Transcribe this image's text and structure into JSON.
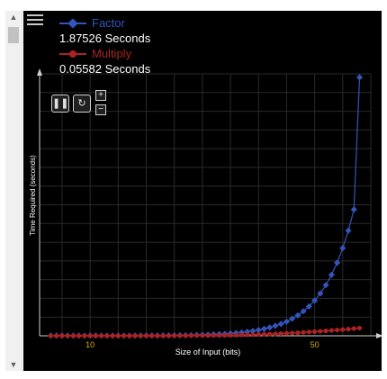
{
  "legend": {
    "factor": {
      "name": "Factor",
      "time": "1.87526 Seconds",
      "color": "#3355bb"
    },
    "multiply": {
      "name": "Multiply",
      "time": "0.05582 Seconds",
      "color": "#aa2222"
    }
  },
  "controls": {
    "pause_icon": "pause-icon",
    "reset_icon": "refresh-icon",
    "zoom_in": "+",
    "zoom_out": "−"
  },
  "chart_data": {
    "type": "line",
    "xlabel": "Size of Input (bits)",
    "ylabel": "Time Required (seconds)",
    "xlim": [
      1,
      60
    ],
    "ylim": [
      0,
      1.9
    ],
    "x_ticks": [
      10,
      50
    ],
    "x_tick_labels": [
      "10",
      "50"
    ],
    "grid": true,
    "x": [
      3,
      4,
      5,
      6,
      7,
      8,
      9,
      10,
      11,
      12,
      13,
      14,
      15,
      16,
      17,
      18,
      19,
      20,
      21,
      22,
      23,
      24,
      25,
      26,
      27,
      28,
      29,
      30,
      31,
      32,
      33,
      34,
      35,
      36,
      37,
      38,
      39,
      40,
      41,
      42,
      43,
      44,
      45,
      46,
      47,
      48,
      49,
      50,
      51,
      52,
      53,
      54,
      55,
      56,
      57,
      58
    ],
    "series": [
      {
        "name": "Factor",
        "color": "#3355bb",
        "values": [
          0.001,
          0.001,
          0.001,
          0.001,
          0.001,
          0.001,
          0.001,
          0.001,
          0.001,
          0.001,
          0.001,
          0.001,
          0.001,
          0.001,
          0.001,
          0.001,
          0.001,
          0.002,
          0.002,
          0.002,
          0.002,
          0.003,
          0.003,
          0.004,
          0.004,
          0.005,
          0.006,
          0.007,
          0.008,
          0.01,
          0.012,
          0.014,
          0.017,
          0.02,
          0.024,
          0.029,
          0.035,
          0.042,
          0.05,
          0.06,
          0.072,
          0.086,
          0.103,
          0.124,
          0.148,
          0.178,
          0.213,
          0.256,
          0.307,
          0.368,
          0.442,
          0.53,
          0.636,
          0.763,
          0.916,
          1.875
        ]
      },
      {
        "name": "Multiply",
        "color": "#aa2222",
        "values": [
          0,
          0,
          0,
          0,
          0,
          0,
          0,
          0,
          0,
          0,
          0,
          0,
          0,
          0,
          0,
          0,
          0,
          0,
          0,
          0,
          0,
          0,
          0.001,
          0.001,
          0.001,
          0.001,
          0.002,
          0.002,
          0.002,
          0.003,
          0.003,
          0.004,
          0.004,
          0.005,
          0.006,
          0.007,
          0.008,
          0.009,
          0.011,
          0.012,
          0.014,
          0.016,
          0.018,
          0.02,
          0.022,
          0.025,
          0.028,
          0.03,
          0.033,
          0.036,
          0.039,
          0.042,
          0.045,
          0.048,
          0.052,
          0.056
        ]
      }
    ]
  }
}
